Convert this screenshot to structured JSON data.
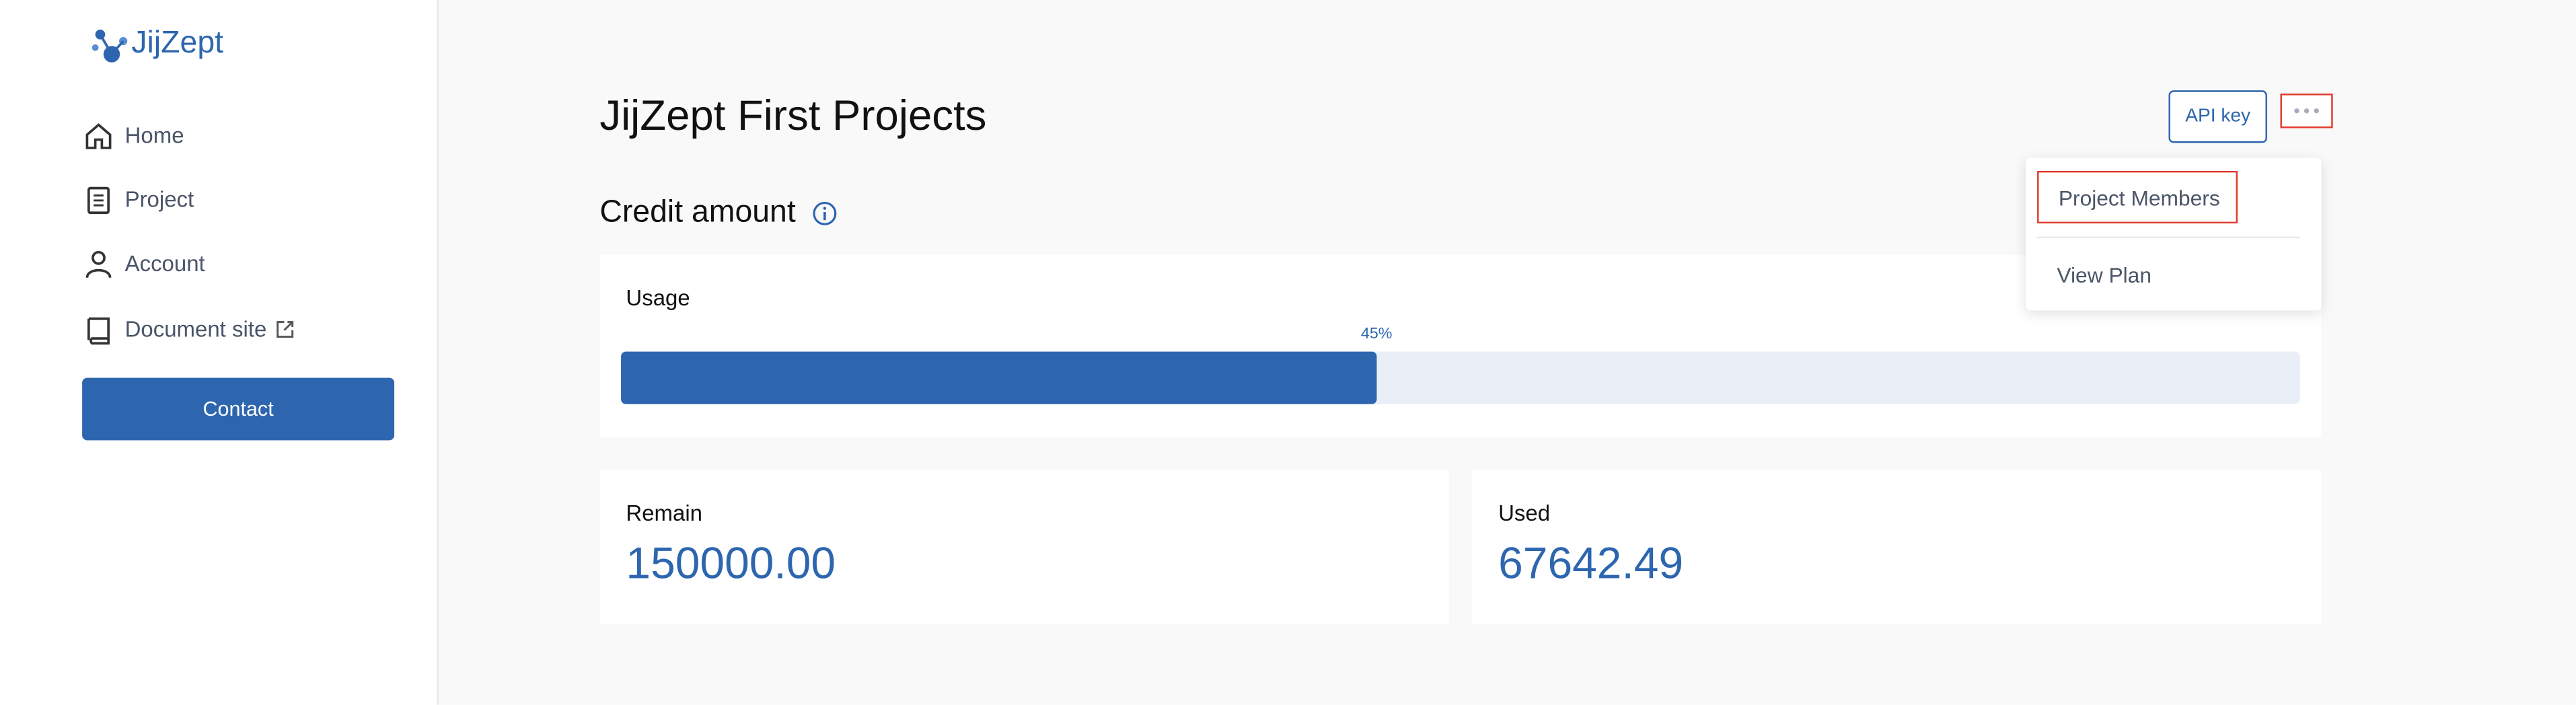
{
  "sidebar": {
    "logo": "JijZept",
    "nav": [
      "Home",
      "Project",
      "Account",
      "Document site"
    ],
    "contact": "Contact"
  },
  "header": {
    "title": "JijZept First Projects",
    "api_key": "API key"
  },
  "menu": {
    "items": [
      "Project Members",
      "View Plan"
    ]
  },
  "credit": {
    "title": "Credit amount",
    "usage_label": "Usage",
    "usage_percent": 45,
    "usage_percent_label": "45%",
    "remain_label": "Remain",
    "remain": "150000.00",
    "used_label": "Used",
    "used": "67642.49"
  }
}
